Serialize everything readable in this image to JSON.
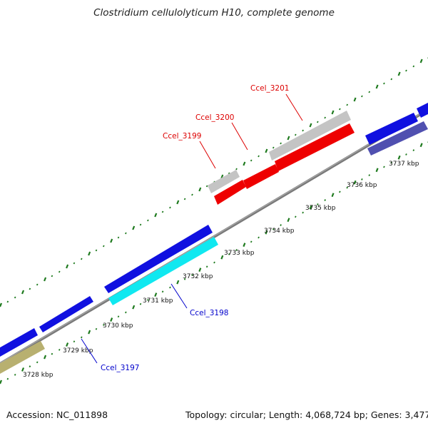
{
  "title": "Clostridium cellulolyticum H10, complete genome",
  "footer": {
    "accession": "Accession: NC_011898",
    "summary": "Topology: circular; Length: 4,068,724 bp; Genes: 3,477"
  },
  "colors": {
    "backbone": "#8c8c8c",
    "forward_dots": "#1e7a1e",
    "reverse_dots": "#1e7a1e",
    "gene_blue": "#1010e0",
    "gene_cyan": "#10e8f0",
    "gene_red": "#ee0000",
    "gene_gray": "#c8c8c8",
    "gene_olive": "#b8b070",
    "gene_slate": "#5050b0",
    "label_red": "#dd0000",
    "label_blue": "#0000cc"
  },
  "ticks": [
    {
      "label": "3728 kbp",
      "kbp": 3728
    },
    {
      "label": "3729 kbp",
      "kbp": 3729
    },
    {
      "label": "3730 kbp",
      "kbp": 3730
    },
    {
      "label": "3731 kbp",
      "kbp": 3731
    },
    {
      "label": "3732 kbp",
      "kbp": 3732
    },
    {
      "label": "3733 kbp",
      "kbp": 3733
    },
    {
      "label": "3734 kbp",
      "kbp": 3734
    },
    {
      "label": "3735 kbp",
      "kbp": 3735
    },
    {
      "label": "3736 kbp",
      "kbp": 3736
    },
    {
      "label": "3737 kbp",
      "kbp": 3737
    }
  ],
  "gene_labels": [
    {
      "text": "Ccel_3197",
      "color": "label_blue"
    },
    {
      "text": "Ccel_3198",
      "color": "label_blue"
    },
    {
      "text": "Ccel_3199",
      "color": "label_red"
    },
    {
      "text": "Ccel_3200",
      "color": "label_red"
    },
    {
      "text": "Ccel_3201",
      "color": "label_red"
    }
  ]
}
